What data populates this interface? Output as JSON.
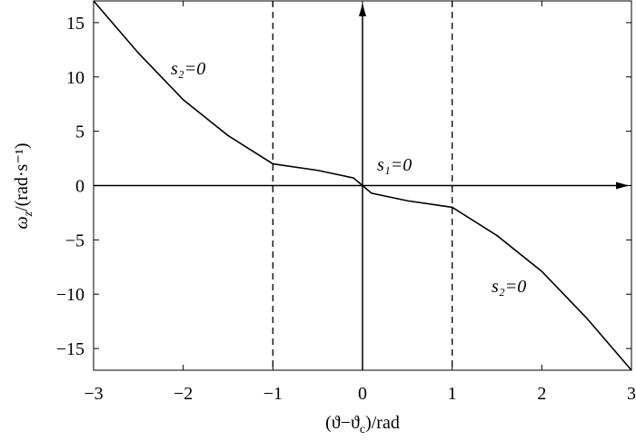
{
  "chart_data": {
    "type": "line",
    "xlabel": {
      "pre": "(ϑ−ϑ",
      "sub": "c",
      "rest": ")/rad"
    },
    "ylabel": {
      "main": "ω",
      "sub": "z",
      "rest": "/(rad·s⁻¹)"
    },
    "x": [
      -3,
      -2.5,
      -2,
      -1.5,
      -1,
      -0.5,
      -0.1,
      0,
      0.1,
      0.5,
      1,
      1.5,
      2,
      2.5,
      3
    ],
    "series": [
      {
        "color": "#000000",
        "values": [
          17,
          12.2,
          7.9,
          4.6,
          2.0,
          1.4,
          0.7,
          0,
          -0.7,
          -1.4,
          -2.0,
          -4.6,
          -7.9,
          -12.2,
          -17
        ]
      }
    ],
    "vlines": [
      -1,
      1
    ],
    "annotations": [
      "s₂=0",
      "s₁=0",
      "s₂=0"
    ],
    "xlim": [
      -3,
      3
    ],
    "ylim": [
      -17,
      17
    ],
    "xticks": [
      {
        "value": -3,
        "label": "−3"
      },
      {
        "value": -2,
        "label": "−2"
      },
      {
        "value": -1,
        "label": "−1"
      },
      0,
      1,
      2,
      3
    ],
    "yticks": [
      {
        "value": -15,
        "label": "−15"
      },
      {
        "value": -10,
        "label": "−10"
      },
      {
        "value": -5,
        "label": "−5"
      },
      0,
      5,
      10,
      15
    ]
  }
}
